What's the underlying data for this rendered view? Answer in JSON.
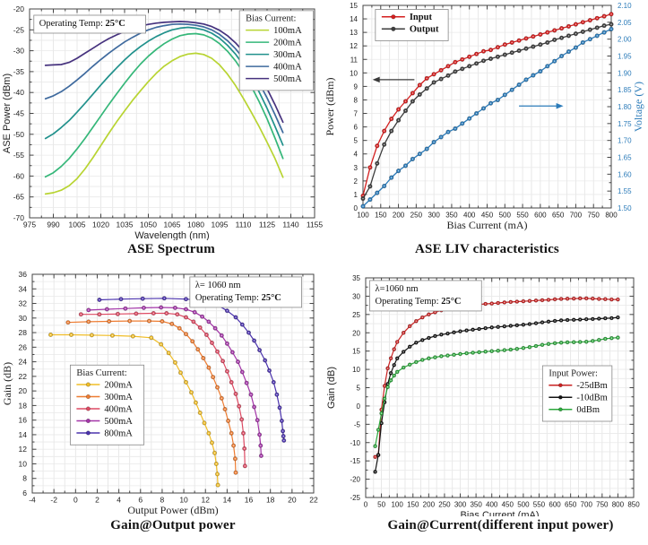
{
  "page": {
    "background": "#ffffff"
  },
  "chart_data": [
    {
      "id": "ase_spectrum",
      "type": "line",
      "title": "ASE Spectrum",
      "xlabel": "Wavelength (nm)",
      "ylabel": "ASE Power (dBm)",
      "label_font": "sans",
      "xlim": [
        975,
        1155
      ],
      "xtick_step": 15,
      "grid_x_step": 7.5,
      "ylim": [
        -70,
        -20
      ],
      "ytick_step": 5,
      "grid_y_step": 2.5,
      "grid": true,
      "line_width": 1.7,
      "marker_r": 0,
      "annotation_box": {
        "pos": [
          0.015,
          0.03
        ],
        "lines": [
          [
            {
              "text": "Operating Temp:  "
            },
            {
              "text": "25°C",
              "bold": true
            }
          ]
        ]
      },
      "legend": {
        "title": "Bias Current:",
        "pos": [
          0.995,
          0.008
        ],
        "anchor": "tr"
      },
      "x": [
        985,
        990,
        995,
        1000,
        1005,
        1010,
        1015,
        1020,
        1025,
        1030,
        1035,
        1040,
        1045,
        1050,
        1055,
        1060,
        1065,
        1070,
        1075,
        1080,
        1085,
        1090,
        1095,
        1100,
        1105,
        1110,
        1115,
        1120,
        1125,
        1130,
        1135
      ],
      "series": [
        {
          "name": "100mA",
          "color": "#b8d432",
          "y": [
            -64.3,
            -64.0,
            -63.4,
            -62.3,
            -60.6,
            -58.3,
            -55.6,
            -52.7,
            -49.8,
            -47.0,
            -44.4,
            -41.9,
            -39.6,
            -37.4,
            -35.4,
            -33.7,
            -32.4,
            -31.4,
            -30.8,
            -30.6,
            -30.9,
            -31.8,
            -33.4,
            -35.6,
            -38.3,
            -41.4,
            -44.7,
            -48.2,
            -51.9,
            -55.8,
            -60.3
          ]
        },
        {
          "name": "200mA",
          "color": "#35b779",
          "y": [
            -60.2,
            -59.2,
            -57.7,
            -55.8,
            -53.5,
            -51.0,
            -48.3,
            -45.6,
            -42.9,
            -40.3,
            -37.8,
            -35.4,
            -33.2,
            -31.3,
            -29.7,
            -28.3,
            -27.2,
            -26.4,
            -26.0,
            -25.9,
            -26.2,
            -27.0,
            -28.3,
            -30.1,
            -32.4,
            -35.2,
            -38.5,
            -42.2,
            -46.3,
            -50.9,
            -55.8
          ]
        },
        {
          "name": "300mA",
          "color": "#21918c",
          "y": [
            -51.0,
            -49.9,
            -48.4,
            -46.7,
            -44.7,
            -42.6,
            -40.4,
            -38.2,
            -36.1,
            -34.1,
            -32.2,
            -30.5,
            -29.0,
            -27.7,
            -26.6,
            -25.7,
            -25.0,
            -24.6,
            -24.4,
            -24.6,
            -25.0,
            -25.8,
            -27.0,
            -28.7,
            -30.8,
            -33.4,
            -36.4,
            -39.9,
            -43.8,
            -48.1,
            -52.6
          ]
        },
        {
          "name": "400mA",
          "color": "#3f6a9e",
          "y": [
            -41.5,
            -40.8,
            -39.8,
            -38.5,
            -37.0,
            -35.4,
            -33.7,
            -32.1,
            -30.6,
            -29.2,
            -27.9,
            -26.8,
            -25.8,
            -25.0,
            -24.4,
            -24.0,
            -23.7,
            -23.6,
            -23.7,
            -23.9,
            -24.3,
            -25.0,
            -26.1,
            -27.6,
            -29.5,
            -31.8,
            -34.5,
            -37.7,
            -41.3,
            -45.3,
            -49.6
          ]
        },
        {
          "name": "500mA",
          "color": "#46327e",
          "y": [
            -33.5,
            -33.4,
            -33.3,
            -32.8,
            -31.8,
            -30.6,
            -29.4,
            -28.2,
            -27.1,
            -26.2,
            -25.4,
            -24.7,
            -24.1,
            -23.7,
            -23.4,
            -23.2,
            -23.1,
            -23.0,
            -23.1,
            -23.3,
            -23.6,
            -24.2,
            -25.1,
            -26.4,
            -28.1,
            -30.2,
            -32.7,
            -35.7,
            -39.1,
            -42.9,
            -47.1
          ]
        }
      ]
    },
    {
      "id": "ase_liv",
      "type": "line",
      "title": "ASE LIV characteristics",
      "xlabel": "Bias Current (mA)",
      "ylabel": "Power (dBm)",
      "label_font": "serif",
      "y2label": "Voltage (V)",
      "y2lim": [
        1.5,
        2.1
      ],
      "y2tick_step": 0.05,
      "y2_decimals": 2,
      "y2color": "#2b7bb9",
      "xlim": [
        100,
        800
      ],
      "xtick_step": 50,
      "grid_x_step": 25,
      "ylim": [
        0,
        15
      ],
      "ytick_step": 1,
      "grid_y_step": 1,
      "grid": true,
      "line_width": 1.3,
      "marker_r": 2.3,
      "legend": {
        "pos": [
          0.05,
          0.02
        ],
        "bold": true
      },
      "arrows": [
        {
          "from": [
            245,
            9.5
          ],
          "to": [
            127,
            9.5
          ],
          "color": "#3a3a3a"
        },
        {
          "from": [
            540,
            7.55
          ],
          "to": [
            665,
            7.55
          ],
          "color": "#2b7bb9"
        }
      ],
      "x": [
        100,
        120,
        140,
        160,
        180,
        200,
        220,
        240,
        260,
        280,
        300,
        320,
        340,
        360,
        380,
        400,
        420,
        440,
        460,
        480,
        500,
        520,
        540,
        560,
        580,
        600,
        620,
        640,
        660,
        680,
        700,
        720,
        740,
        760,
        780,
        800
      ],
      "series": [
        {
          "name": "Input",
          "color": "#d41f1f",
          "y": [
            0.9,
            3.0,
            4.6,
            5.7,
            6.6,
            7.3,
            7.9,
            8.5,
            9.1,
            9.6,
            9.9,
            10.2,
            10.5,
            10.8,
            11.0,
            11.2,
            11.4,
            11.6,
            11.7,
            11.9,
            12.1,
            12.25,
            12.4,
            12.55,
            12.7,
            12.85,
            13.0,
            13.15,
            13.3,
            13.45,
            13.6,
            13.75,
            13.9,
            14.05,
            14.2,
            14.35
          ]
        },
        {
          "name": "Output",
          "color": "#3d3d3d",
          "y": [
            0.7,
            1.6,
            3.3,
            4.7,
            5.7,
            6.5,
            7.2,
            7.9,
            8.4,
            8.85,
            9.3,
            9.55,
            9.8,
            10.1,
            10.3,
            10.5,
            10.7,
            10.9,
            11.05,
            11.2,
            11.35,
            11.5,
            11.65,
            11.8,
            11.95,
            12.1,
            12.25,
            12.45,
            12.6,
            12.75,
            12.9,
            13.05,
            13.2,
            13.35,
            13.5,
            13.6
          ]
        },
        {
          "name": "Voltage",
          "color": "#2b7bb9",
          "axis": "y2",
          "in_legend": false,
          "y": [
            1.505,
            1.525,
            1.545,
            1.565,
            1.59,
            1.61,
            1.625,
            1.645,
            1.66,
            1.675,
            1.695,
            1.71,
            1.725,
            1.735,
            1.75,
            1.765,
            1.78,
            1.795,
            1.81,
            1.82,
            1.835,
            1.85,
            1.865,
            1.88,
            1.893,
            1.905,
            1.92,
            1.935,
            1.95,
            1.963,
            1.975,
            1.99,
            2.0,
            2.01,
            2.02,
            2.03
          ]
        }
      ]
    },
    {
      "id": "gain_output",
      "type": "line",
      "title": "Gain@Output power",
      "xlabel": "Output Power (dBm)",
      "ylabel": "Gain (dB)",
      "label_font": "serif",
      "xlim": [
        -4,
        22
      ],
      "xtick_step": 2,
      "grid_x_step": 1,
      "ylim": [
        6,
        36
      ],
      "ytick_step": 2,
      "grid_y_step": 1,
      "grid": true,
      "line_width": 1.2,
      "marker_r": 2.2,
      "annotation_box": {
        "pos": [
          0.56,
          0.012
        ],
        "lines": [
          [
            {
              "text": "λ= 1060 nm"
            }
          ],
          [
            {
              "text": "Operating Temp:  "
            },
            {
              "text": "25°C",
              "bold": true
            }
          ]
        ]
      },
      "legend": {
        "title": "Bias Current:",
        "pos": [
          0.135,
          0.415
        ]
      },
      "series": [
        {
          "name": "200mA",
          "color": "#f0bd27",
          "x": [
            -2.3,
            -0.4,
            1.5,
            3.4,
            5.3,
            7.0,
            7.9,
            8.6,
            9.2,
            9.7,
            10.2,
            10.7,
            11.1,
            11.5,
            11.9,
            12.3,
            12.6,
            12.85,
            13.0,
            13.1,
            13.15
          ],
          "y": [
            27.7,
            27.7,
            27.65,
            27.6,
            27.5,
            27.3,
            26.4,
            25.2,
            23.9,
            22.5,
            21.2,
            19.8,
            18.4,
            17.0,
            15.6,
            14.2,
            12.9,
            11.5,
            10.0,
            8.6,
            7.1
          ]
        },
        {
          "name": "300mA",
          "color": "#ee7c31",
          "x": [
            -0.7,
            1.2,
            3.1,
            5.0,
            6.8,
            8.0,
            8.9,
            9.6,
            10.2,
            10.8,
            11.3,
            11.8,
            12.3,
            12.7,
            13.1,
            13.5,
            13.8,
            14.1,
            14.4,
            14.6,
            14.75,
            14.8
          ],
          "y": [
            29.4,
            29.5,
            29.55,
            29.6,
            29.6,
            29.55,
            29.2,
            28.6,
            27.8,
            26.8,
            25.7,
            24.5,
            23.2,
            21.9,
            20.5,
            19.0,
            17.5,
            15.9,
            14.2,
            12.5,
            10.7,
            8.8
          ]
        },
        {
          "name": "400mA",
          "color": "#dd4a63",
          "x": [
            0.5,
            2.2,
            3.9,
            5.6,
            7.2,
            8.4,
            9.4,
            10.2,
            10.9,
            11.5,
            12.1,
            12.6,
            13.1,
            13.6,
            14.0,
            14.4,
            14.8,
            15.1,
            15.35,
            15.5,
            15.6,
            15.65
          ],
          "y": [
            30.5,
            30.5,
            30.55,
            30.6,
            30.65,
            30.65,
            30.5,
            30.1,
            29.5,
            28.7,
            27.7,
            26.6,
            25.4,
            24.1,
            22.7,
            21.2,
            19.6,
            17.9,
            16.1,
            14.2,
            12.1,
            9.7
          ]
        },
        {
          "name": "500mA",
          "color": "#a335a8",
          "x": [
            1.2,
            2.9,
            4.6,
            6.3,
            7.9,
            9.2,
            10.2,
            11.0,
            11.7,
            12.3,
            12.9,
            13.5,
            14.0,
            14.5,
            15.0,
            15.4,
            15.8,
            16.2,
            16.5,
            16.8,
            17.0,
            17.1,
            17.15
          ],
          "y": [
            31.1,
            31.2,
            31.3,
            31.4,
            31.45,
            31.4,
            31.2,
            30.8,
            30.2,
            29.5,
            28.6,
            27.6,
            26.5,
            25.3,
            24.0,
            22.6,
            21.1,
            19.5,
            17.8,
            16.0,
            14.0,
            12.5,
            11.1
          ]
        },
        {
          "name": "800mA",
          "color": "#4b33ae",
          "x": [
            2.2,
            4.2,
            6.2,
            8.2,
            10.2,
            11.9,
            13.1,
            14.0,
            14.8,
            15.4,
            16.0,
            16.5,
            17.0,
            17.5,
            17.9,
            18.3,
            18.6,
            18.85,
            19.05,
            19.15,
            19.2,
            19.25
          ],
          "y": [
            32.5,
            32.6,
            32.65,
            32.7,
            32.6,
            32.4,
            31.8,
            31.0,
            30.1,
            29.1,
            28.0,
            26.9,
            25.6,
            24.2,
            22.8,
            21.2,
            19.5,
            17.7,
            15.9,
            14.5,
            13.8,
            13.2
          ]
        }
      ]
    },
    {
      "id": "gain_current",
      "type": "line",
      "title": "Gain@Current(different input power)",
      "xlabel": "Bias Current (mA)",
      "ylabel": "Gain (dB)",
      "label_font": "sans",
      "xlim": [
        0,
        850
      ],
      "xtick_step": 50,
      "grid_x_step": 25,
      "ylim": [
        -25,
        35
      ],
      "ytick_step": 5,
      "grid_y_step": 2.5,
      "grid": true,
      "line_width": 1.2,
      "marker_r": 2.0,
      "annotation_box": {
        "pos": [
          0.015,
          0.012
        ],
        "lines": [
          [
            {
              "text": "λ=1060 nm"
            }
          ],
          [
            {
              "text": "Operating Temp:  "
            },
            {
              "text": "25°C",
              "bold": true
            }
          ]
        ]
      },
      "legend": {
        "title": "Input Power:",
        "pos": [
          0.66,
          0.4
        ]
      },
      "x": [
        30,
        40,
        50,
        60,
        70,
        80,
        90,
        100,
        120,
        140,
        160,
        180,
        200,
        220,
        240,
        260,
        280,
        300,
        320,
        340,
        360,
        380,
        400,
        420,
        440,
        460,
        480,
        500,
        520,
        540,
        560,
        580,
        600,
        620,
        640,
        660,
        680,
        700,
        720,
        740,
        760,
        780,
        800
      ],
      "series": [
        {
          "name": "-25dBm",
          "color": "#c92222",
          "y": [
            -13.9,
            -13.4,
            -1.0,
            5.5,
            10.3,
            13.0,
            15.5,
            17.5,
            20.0,
            21.8,
            23.2,
            24.2,
            25.0,
            25.6,
            26.1,
            26.5,
            26.8,
            27.1,
            27.4,
            27.6,
            27.75,
            27.9,
            28.0,
            28.15,
            28.3,
            28.4,
            28.5,
            28.6,
            28.7,
            28.8,
            28.9,
            29.0,
            29.15,
            29.25,
            29.3,
            29.35,
            29.4,
            29.4,
            29.35,
            29.25,
            29.2,
            29.1,
            29.1
          ]
        },
        {
          "name": "-10dBm",
          "color": "#141414",
          "y": [
            -18.0,
            -13.4,
            -4.7,
            1.0,
            6.0,
            9.0,
            11.2,
            13.0,
            14.8,
            16.2,
            17.3,
            18.0,
            18.6,
            19.1,
            19.5,
            19.8,
            20.1,
            20.4,
            20.65,
            20.85,
            21.05,
            21.25,
            21.45,
            21.6,
            21.75,
            21.9,
            22.05,
            22.2,
            22.4,
            22.6,
            22.85,
            23.05,
            23.25,
            23.4,
            23.5,
            23.55,
            23.6,
            23.7,
            23.75,
            23.85,
            23.95,
            24.0,
            24.2
          ]
        },
        {
          "name": "0dBm",
          "color": "#2ca83c",
          "y": [
            -11.0,
            -6.5,
            -2.0,
            2.0,
            5.2,
            7.0,
            8.3,
            9.3,
            10.5,
            11.3,
            12.0,
            12.6,
            13.0,
            13.3,
            13.6,
            13.8,
            14.0,
            14.2,
            14.4,
            14.55,
            14.7,
            14.85,
            15.0,
            15.1,
            15.25,
            15.4,
            15.6,
            15.85,
            16.1,
            16.4,
            16.7,
            16.95,
            17.15,
            17.3,
            17.4,
            17.45,
            17.5,
            17.55,
            17.75,
            18.05,
            18.35,
            18.55,
            18.7
          ]
        }
      ]
    }
  ]
}
